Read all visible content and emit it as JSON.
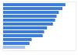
{
  "chart_data": {
    "type": "bar",
    "orientation": "horizontal",
    "categories": [
      null,
      null,
      null,
      null,
      null,
      null,
      null,
      null,
      null,
      null,
      null,
      null
    ],
    "values": [
      86,
      82,
      77,
      74,
      72,
      69,
      61,
      57,
      55,
      40,
      37,
      31
    ],
    "colors": [
      "#3f7fdc",
      "#3f7fdc",
      "#3f7fdc",
      "#3f7fdc",
      "#3f7fdc",
      "#3f7fdc",
      "#3f7fdc",
      "#3f7fdc",
      "#3f7fdc",
      "#3f7fdc",
      "#3f7fdc",
      "#a9c2e6"
    ],
    "xlim": [
      0,
      100
    ],
    "grid": false,
    "tick_labels": false
  }
}
